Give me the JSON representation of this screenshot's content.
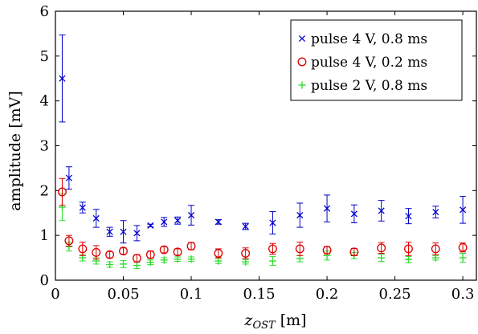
{
  "chart_data": {
    "type": "scatter",
    "title": "",
    "xlabel": "z_OST [m]",
    "xlabel_main": "z",
    "xlabel_sub": "OST",
    "xlabel_unit": " [m]",
    "ylabel": "amplitude [mV]",
    "xlim": [
      0,
      0.31
    ],
    "ylim": [
      0,
      6
    ],
    "xticks": [
      0,
      0.05,
      0.1,
      0.15,
      0.2,
      0.25,
      0.3
    ],
    "xtick_labels": [
      "0",
      "0.05",
      "0.1",
      "0.15",
      "0.2",
      "0.25",
      "0.3"
    ],
    "yticks": [
      0,
      1,
      2,
      3,
      4,
      5,
      6
    ],
    "ytick_labels": [
      "0",
      "1",
      "2",
      "3",
      "4",
      "5",
      "6"
    ],
    "grid": false,
    "legend_position": "top-right",
    "error_bars": true,
    "series": [
      {
        "name": "pulse 4 V, 0.8 ms",
        "marker": "x",
        "color": "#0000cc",
        "x": [
          0.005,
          0.01,
          0.02,
          0.03,
          0.04,
          0.05,
          0.06,
          0.07,
          0.08,
          0.09,
          0.1,
          0.12,
          0.14,
          0.16,
          0.18,
          0.2,
          0.22,
          0.24,
          0.26,
          0.28,
          0.3
        ],
        "y": [
          4.5,
          2.28,
          1.62,
          1.38,
          1.08,
          1.08,
          1.05,
          1.22,
          1.3,
          1.33,
          1.45,
          1.3,
          1.2,
          1.28,
          1.45,
          1.6,
          1.48,
          1.55,
          1.43,
          1.52,
          1.57
        ],
        "err": [
          0.97,
          0.25,
          0.12,
          0.2,
          0.1,
          0.25,
          0.17,
          0.03,
          0.1,
          0.08,
          0.22,
          0.05,
          0.07,
          0.25,
          0.27,
          0.3,
          0.2,
          0.23,
          0.17,
          0.13,
          0.3
        ]
      },
      {
        "name": "pulse 4 V, 0.2 ms",
        "marker": "o",
        "color": "#dd0000",
        "x": [
          0.005,
          0.01,
          0.02,
          0.03,
          0.04,
          0.05,
          0.06,
          0.07,
          0.08,
          0.09,
          0.1,
          0.12,
          0.14,
          0.16,
          0.18,
          0.2,
          0.22,
          0.24,
          0.26,
          0.28,
          0.3
        ],
        "y": [
          1.97,
          0.88,
          0.7,
          0.62,
          0.57,
          0.65,
          0.49,
          0.57,
          0.68,
          0.63,
          0.76,
          0.6,
          0.6,
          0.7,
          0.7,
          0.67,
          0.63,
          0.72,
          0.7,
          0.7,
          0.73
        ],
        "err": [
          0.3,
          0.12,
          0.15,
          0.15,
          0.07,
          0.07,
          0.08,
          0.08,
          0.07,
          0.07,
          0.08,
          0.1,
          0.12,
          0.12,
          0.15,
          0.08,
          0.08,
          0.12,
          0.15,
          0.13,
          0.1
        ]
      },
      {
        "name": "pulse 2 V, 0.8 ms",
        "marker": "+",
        "color": "#33dd33",
        "x": [
          0.005,
          0.01,
          0.02,
          0.03,
          0.04,
          0.05,
          0.06,
          0.07,
          0.08,
          0.09,
          0.1,
          0.12,
          0.14,
          0.16,
          0.18,
          0.2,
          0.22,
          0.24,
          0.26,
          0.28,
          0.3
        ],
        "y": [
          1.63,
          0.75,
          0.5,
          0.43,
          0.35,
          0.36,
          0.33,
          0.4,
          0.45,
          0.47,
          0.47,
          0.43,
          0.41,
          0.43,
          0.48,
          0.55,
          0.55,
          0.5,
          0.46,
          0.5,
          0.5
        ],
        "err": [
          0.3,
          0.1,
          0.07,
          0.07,
          0.06,
          0.08,
          0.07,
          0.05,
          0.05,
          0.05,
          0.05,
          0.06,
          0.05,
          0.1,
          0.07,
          0.1,
          0.07,
          0.08,
          0.07,
          0.05,
          0.1
        ]
      }
    ]
  }
}
